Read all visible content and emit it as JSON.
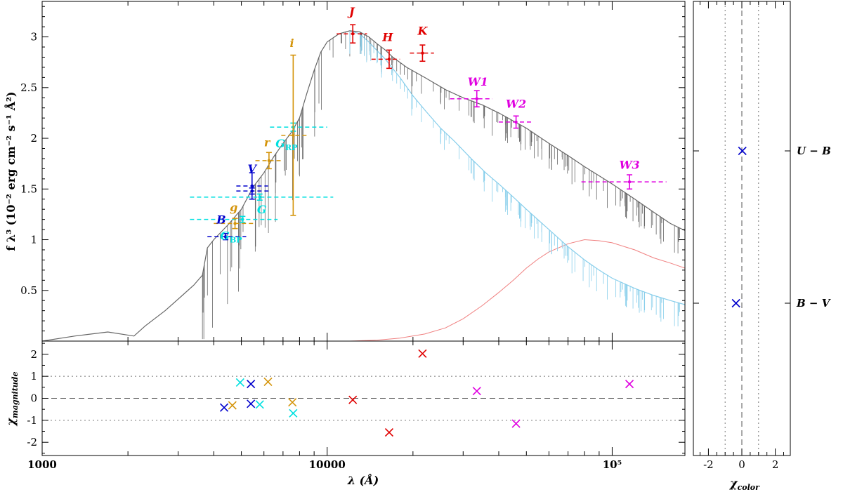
{
  "chart_data": [
    {
      "type": "scatter",
      "panel": "main",
      "title": "",
      "xlabel": "λ (Å)",
      "ylabel": "f λ³ (10⁻² erg cm⁻² s⁻¹ Å²)",
      "xscale": "log",
      "xlim": [
        1000,
        180000
      ],
      "ylim": [
        0,
        3.35
      ],
      "x_tick_labels": [
        {
          "value": 1000,
          "label": "1000"
        },
        {
          "value": 10000,
          "label": "10000"
        },
        {
          "value": 100000,
          "label": "10⁵"
        }
      ],
      "y_tick_labels": [
        {
          "value": 0.5,
          "label": "0.5"
        },
        {
          "value": 1,
          "label": "1"
        },
        {
          "value": 1.5,
          "label": "1.5"
        },
        {
          "value": 2,
          "label": "2"
        },
        {
          "value": 2.5,
          "label": "2.5"
        },
        {
          "value": 3,
          "label": "3"
        }
      ],
      "colors": {
        "johnson": "#0000cc",
        "gaia": "#00e0e0",
        "sdss": "#d4940a",
        "twomass": "#e00000",
        "wise": "#e000e0",
        "model_total": "#666666",
        "model_star": "#87ceeb",
        "model_excess": "#f08080"
      },
      "photometry": [
        {
          "label": "B",
          "sub": "",
          "color": "#0000cc",
          "x": 4400,
          "y": 1.03,
          "yerr": 0.03,
          "xmin": 3800,
          "xmax": 5200,
          "label_x": 4250,
          "label_y": 1.16
        },
        {
          "label": "V",
          "sub": "",
          "color": "#0000cc",
          "x": 5450,
          "y": 1.53,
          "yerr": 0.13,
          "xmin": 4800,
          "xmax": 6200,
          "label_x": 5450,
          "label_y": 1.66
        },
        {
          "label": "",
          "sub": "",
          "color": "#0000cc",
          "x": 5450,
          "y": 1.48,
          "yerr": 0.03,
          "xmin": 4800,
          "xmax": 6300,
          "label_x": null,
          "label_y": null
        },
        {
          "label": "G",
          "sub": "BP",
          "color": "#00e0e0",
          "x": 5050,
          "y": 1.2,
          "yerr": 0.03,
          "xmin": 3300,
          "xmax": 6700,
          "label_x": 4600,
          "label_y": 1.0
        },
        {
          "label": "G",
          "sub": "",
          "color": "#00e0e0",
          "x": 5800,
          "y": 1.42,
          "yerr": 0.03,
          "xmin": 3300,
          "xmax": 10500,
          "label_x": 5900,
          "label_y": 1.26
        },
        {
          "label": "G",
          "sub": "RP",
          "color": "#00e0e0",
          "x": 7600,
          "y": 2.11,
          "yerr": 0.04,
          "xmin": 6300,
          "xmax": 10000,
          "label_x": 7200,
          "label_y": 1.91
        },
        {
          "label": "g",
          "sub": "",
          "color": "#d4940a",
          "x": 4750,
          "y": 1.16,
          "yerr": 0.05,
          "xmin": 4000,
          "xmax": 5500,
          "label_x": 4700,
          "label_y": 1.28
        },
        {
          "label": "r",
          "sub": "",
          "color": "#d4940a",
          "x": 6250,
          "y": 1.78,
          "yerr": 0.08,
          "xmin": 5600,
          "xmax": 7000,
          "label_x": 6150,
          "label_y": 1.92
        },
        {
          "label": "i",
          "sub": "",
          "color": "#d4940a",
          "x": 7600,
          "y": 2.03,
          "yerr": 0.79,
          "xmin": 6900,
          "xmax": 8500,
          "label_x": 7520,
          "label_y": 2.9
        },
        {
          "label": "J",
          "sub": "",
          "color": "#e00000",
          "x": 12300,
          "y": 3.03,
          "yerr": 0.09,
          "xmin": 10800,
          "xmax": 13800,
          "label_x": 12200,
          "label_y": 3.21
        },
        {
          "label": "H",
          "sub": "",
          "color": "#e00000",
          "x": 16500,
          "y": 2.78,
          "yerr": 0.09,
          "xmin": 14300,
          "xmax": 18000,
          "label_x": 16300,
          "label_y": 2.96
        },
        {
          "label": "K",
          "sub": "",
          "color": "#e00000",
          "x": 21600,
          "y": 2.84,
          "yerr": 0.08,
          "xmin": 19500,
          "xmax": 23700,
          "label_x": 21600,
          "label_y": 3.02
        },
        {
          "label": "W1",
          "sub": "",
          "color": "#e000e0",
          "x": 33500,
          "y": 2.39,
          "yerr": 0.08,
          "xmin": 27000,
          "xmax": 38000,
          "label_x": 33800,
          "label_y": 2.52
        },
        {
          "label": "W2",
          "sub": "",
          "color": "#e000e0",
          "x": 46000,
          "y": 2.16,
          "yerr": 0.06,
          "xmin": 40000,
          "xmax": 52000,
          "label_x": 46000,
          "label_y": 2.3
        },
        {
          "label": "W3",
          "sub": "",
          "color": "#e000e0",
          "x": 115000,
          "y": 1.57,
          "yerr": 0.07,
          "xmin": 78000,
          "xmax": 155000,
          "label_x": 115000,
          "label_y": 1.7
        }
      ],
      "model_total": [
        [
          1000,
          0.0
        ],
        [
          1300,
          0.05
        ],
        [
          1700,
          0.09
        ],
        [
          2100,
          0.05
        ],
        [
          2300,
          0.15
        ],
        [
          2700,
          0.3
        ],
        [
          3100,
          0.45
        ],
        [
          3400,
          0.55
        ],
        [
          3650,
          0.65
        ],
        [
          3800,
          0.92
        ],
        [
          4000,
          1.0
        ],
        [
          4500,
          1.15
        ],
        [
          5000,
          1.3
        ],
        [
          5500,
          1.52
        ],
        [
          6000,
          1.66
        ],
        [
          6500,
          1.82
        ],
        [
          7000,
          1.95
        ],
        [
          7500,
          2.06
        ],
        [
          8000,
          2.2
        ],
        [
          8500,
          2.45
        ],
        [
          9000,
          2.67
        ],
        [
          9500,
          2.85
        ],
        [
          10000,
          2.95
        ],
        [
          11000,
          3.03
        ],
        [
          12000,
          3.06
        ],
        [
          13000,
          3.05
        ],
        [
          14000,
          3.0
        ],
        [
          15000,
          2.93
        ],
        [
          16000,
          2.87
        ],
        [
          17000,
          2.8
        ],
        [
          19000,
          2.7
        ],
        [
          22000,
          2.6
        ],
        [
          26000,
          2.48
        ],
        [
          30000,
          2.4
        ],
        [
          35000,
          2.33
        ],
        [
          40000,
          2.25
        ],
        [
          50000,
          2.1
        ],
        [
          60000,
          1.95
        ],
        [
          70000,
          1.83
        ],
        [
          80000,
          1.72
        ],
        [
          90000,
          1.63
        ],
        [
          100000,
          1.55
        ],
        [
          120000,
          1.4
        ],
        [
          140000,
          1.27
        ],
        [
          160000,
          1.16
        ],
        [
          180000,
          1.09
        ]
      ],
      "model_star": [
        [
          12000,
          3.06
        ],
        [
          13000,
          3.03
        ],
        [
          14000,
          2.95
        ],
        [
          16000,
          2.78
        ],
        [
          18000,
          2.6
        ],
        [
          20000,
          2.42
        ],
        [
          22000,
          2.28
        ],
        [
          25000,
          2.1
        ],
        [
          28000,
          1.97
        ],
        [
          32000,
          1.8
        ],
        [
          36000,
          1.66
        ],
        [
          40000,
          1.55
        ],
        [
          45000,
          1.42
        ],
        [
          50000,
          1.3
        ],
        [
          60000,
          1.1
        ],
        [
          70000,
          0.93
        ],
        [
          80000,
          0.8
        ],
        [
          90000,
          0.7
        ],
        [
          100000,
          0.62
        ],
        [
          120000,
          0.52
        ],
        [
          140000,
          0.45
        ],
        [
          160000,
          0.4
        ],
        [
          180000,
          0.36
        ]
      ],
      "model_excess": [
        [
          12000,
          0.0
        ],
        [
          15000,
          0.01
        ],
        [
          18000,
          0.03
        ],
        [
          22000,
          0.07
        ],
        [
          26000,
          0.13
        ],
        [
          30000,
          0.22
        ],
        [
          35000,
          0.35
        ],
        [
          40000,
          0.48
        ],
        [
          45000,
          0.6
        ],
        [
          50000,
          0.72
        ],
        [
          55000,
          0.81
        ],
        [
          60000,
          0.88
        ],
        [
          70000,
          0.96
        ],
        [
          80000,
          1.0
        ],
        [
          90000,
          0.99
        ],
        [
          100000,
          0.97
        ],
        [
          120000,
          0.9
        ],
        [
          140000,
          0.82
        ],
        [
          160000,
          0.77
        ],
        [
          180000,
          0.72
        ]
      ]
    },
    {
      "type": "scatter",
      "panel": "residuals",
      "title": "",
      "xlabel": "λ (Å)",
      "ylabel": "χ_magnitude",
      "xscale": "log",
      "xlim": [
        1000,
        180000
      ],
      "ylim": [
        -2.6,
        2.6
      ],
      "y_tick_labels": [
        {
          "value": -2,
          "label": "-2"
        },
        {
          "value": -1,
          "label": "-1"
        },
        {
          "value": 0,
          "label": "0"
        },
        {
          "value": 1,
          "label": "1"
        },
        {
          "value": 2,
          "label": "2"
        }
      ],
      "reference_lines": [
        0,
        1,
        -1
      ],
      "points": [
        {
          "x": 4350,
          "y": -0.42,
          "color": "#0000cc"
        },
        {
          "x": 5400,
          "y": 0.65,
          "color": "#0000cc"
        },
        {
          "x": 5400,
          "y": -0.25,
          "color": "#0000cc"
        },
        {
          "x": 4950,
          "y": 0.72,
          "color": "#00e0e0"
        },
        {
          "x": 5800,
          "y": -0.28,
          "color": "#00e0e0"
        },
        {
          "x": 7600,
          "y": -0.68,
          "color": "#00e0e0"
        },
        {
          "x": 4650,
          "y": -0.32,
          "color": "#d4940a"
        },
        {
          "x": 6200,
          "y": 0.75,
          "color": "#d4940a"
        },
        {
          "x": 7550,
          "y": -0.18,
          "color": "#d4940a"
        },
        {
          "x": 12300,
          "y": -0.07,
          "color": "#e00000"
        },
        {
          "x": 16500,
          "y": -1.55,
          "color": "#e00000"
        },
        {
          "x": 21600,
          "y": 2.03,
          "color": "#e00000"
        },
        {
          "x": 33500,
          "y": 0.33,
          "color": "#e000e0"
        },
        {
          "x": 46000,
          "y": -1.15,
          "color": "#e000e0"
        },
        {
          "x": 115000,
          "y": 0.65,
          "color": "#e000e0"
        }
      ]
    },
    {
      "type": "scatter",
      "panel": "colors",
      "title": "",
      "xlabel": "χ_color",
      "ylabel": "",
      "xlim": [
        -2.9,
        2.9
      ],
      "x_tick_labels": [
        {
          "value": -2,
          "label": "-2"
        },
        {
          "value": 0,
          "label": "0"
        },
        {
          "value": 2,
          "label": "2"
        }
      ],
      "reference_lines": [
        0,
        -1,
        1
      ],
      "color_indices": [
        {
          "name": "U − B",
          "chi": 0.03,
          "color": "#0000cc"
        },
        {
          "name": "B − V",
          "chi": -0.35,
          "color": "#0000cc"
        }
      ]
    }
  ]
}
